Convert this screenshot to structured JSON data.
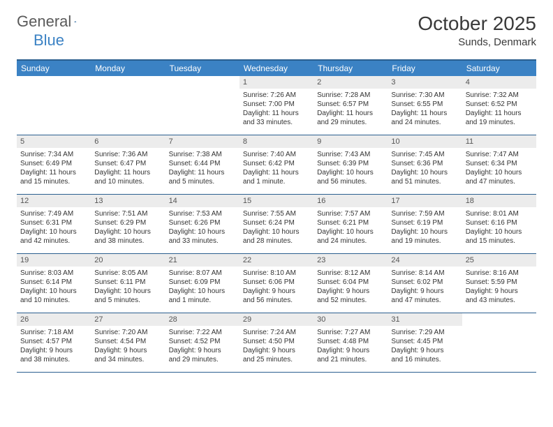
{
  "brand": {
    "word1": "General",
    "word2": "Blue"
  },
  "title": "October 2025",
  "location": "Sunds, Denmark",
  "weekdays": [
    "Sunday",
    "Monday",
    "Tuesday",
    "Wednesday",
    "Thursday",
    "Friday",
    "Saturday"
  ],
  "colors": {
    "header_bar": "#3b82c4",
    "rule": "#2b5f8f",
    "daynum_bg": "#ececec",
    "text": "#333333"
  },
  "weeks": [
    [
      {
        "n": "",
        "sr": "",
        "ss": "",
        "d1": "",
        "d2": ""
      },
      {
        "n": "",
        "sr": "",
        "ss": "",
        "d1": "",
        "d2": ""
      },
      {
        "n": "",
        "sr": "",
        "ss": "",
        "d1": "",
        "d2": ""
      },
      {
        "n": "1",
        "sr": "Sunrise: 7:26 AM",
        "ss": "Sunset: 7:00 PM",
        "d1": "Daylight: 11 hours",
        "d2": "and 33 minutes."
      },
      {
        "n": "2",
        "sr": "Sunrise: 7:28 AM",
        "ss": "Sunset: 6:57 PM",
        "d1": "Daylight: 11 hours",
        "d2": "and 29 minutes."
      },
      {
        "n": "3",
        "sr": "Sunrise: 7:30 AM",
        "ss": "Sunset: 6:55 PM",
        "d1": "Daylight: 11 hours",
        "d2": "and 24 minutes."
      },
      {
        "n": "4",
        "sr": "Sunrise: 7:32 AM",
        "ss": "Sunset: 6:52 PM",
        "d1": "Daylight: 11 hours",
        "d2": "and 19 minutes."
      }
    ],
    [
      {
        "n": "5",
        "sr": "Sunrise: 7:34 AM",
        "ss": "Sunset: 6:49 PM",
        "d1": "Daylight: 11 hours",
        "d2": "and 15 minutes."
      },
      {
        "n": "6",
        "sr": "Sunrise: 7:36 AM",
        "ss": "Sunset: 6:47 PM",
        "d1": "Daylight: 11 hours",
        "d2": "and 10 minutes."
      },
      {
        "n": "7",
        "sr": "Sunrise: 7:38 AM",
        "ss": "Sunset: 6:44 PM",
        "d1": "Daylight: 11 hours",
        "d2": "and 5 minutes."
      },
      {
        "n": "8",
        "sr": "Sunrise: 7:40 AM",
        "ss": "Sunset: 6:42 PM",
        "d1": "Daylight: 11 hours",
        "d2": "and 1 minute."
      },
      {
        "n": "9",
        "sr": "Sunrise: 7:43 AM",
        "ss": "Sunset: 6:39 PM",
        "d1": "Daylight: 10 hours",
        "d2": "and 56 minutes."
      },
      {
        "n": "10",
        "sr": "Sunrise: 7:45 AM",
        "ss": "Sunset: 6:36 PM",
        "d1": "Daylight: 10 hours",
        "d2": "and 51 minutes."
      },
      {
        "n": "11",
        "sr": "Sunrise: 7:47 AM",
        "ss": "Sunset: 6:34 PM",
        "d1": "Daylight: 10 hours",
        "d2": "and 47 minutes."
      }
    ],
    [
      {
        "n": "12",
        "sr": "Sunrise: 7:49 AM",
        "ss": "Sunset: 6:31 PM",
        "d1": "Daylight: 10 hours",
        "d2": "and 42 minutes."
      },
      {
        "n": "13",
        "sr": "Sunrise: 7:51 AM",
        "ss": "Sunset: 6:29 PM",
        "d1": "Daylight: 10 hours",
        "d2": "and 38 minutes."
      },
      {
        "n": "14",
        "sr": "Sunrise: 7:53 AM",
        "ss": "Sunset: 6:26 PM",
        "d1": "Daylight: 10 hours",
        "d2": "and 33 minutes."
      },
      {
        "n": "15",
        "sr": "Sunrise: 7:55 AM",
        "ss": "Sunset: 6:24 PM",
        "d1": "Daylight: 10 hours",
        "d2": "and 28 minutes."
      },
      {
        "n": "16",
        "sr": "Sunrise: 7:57 AM",
        "ss": "Sunset: 6:21 PM",
        "d1": "Daylight: 10 hours",
        "d2": "and 24 minutes."
      },
      {
        "n": "17",
        "sr": "Sunrise: 7:59 AM",
        "ss": "Sunset: 6:19 PM",
        "d1": "Daylight: 10 hours",
        "d2": "and 19 minutes."
      },
      {
        "n": "18",
        "sr": "Sunrise: 8:01 AM",
        "ss": "Sunset: 6:16 PM",
        "d1": "Daylight: 10 hours",
        "d2": "and 15 minutes."
      }
    ],
    [
      {
        "n": "19",
        "sr": "Sunrise: 8:03 AM",
        "ss": "Sunset: 6:14 PM",
        "d1": "Daylight: 10 hours",
        "d2": "and 10 minutes."
      },
      {
        "n": "20",
        "sr": "Sunrise: 8:05 AM",
        "ss": "Sunset: 6:11 PM",
        "d1": "Daylight: 10 hours",
        "d2": "and 5 minutes."
      },
      {
        "n": "21",
        "sr": "Sunrise: 8:07 AM",
        "ss": "Sunset: 6:09 PM",
        "d1": "Daylight: 10 hours",
        "d2": "and 1 minute."
      },
      {
        "n": "22",
        "sr": "Sunrise: 8:10 AM",
        "ss": "Sunset: 6:06 PM",
        "d1": "Daylight: 9 hours",
        "d2": "and 56 minutes."
      },
      {
        "n": "23",
        "sr": "Sunrise: 8:12 AM",
        "ss": "Sunset: 6:04 PM",
        "d1": "Daylight: 9 hours",
        "d2": "and 52 minutes."
      },
      {
        "n": "24",
        "sr": "Sunrise: 8:14 AM",
        "ss": "Sunset: 6:02 PM",
        "d1": "Daylight: 9 hours",
        "d2": "and 47 minutes."
      },
      {
        "n": "25",
        "sr": "Sunrise: 8:16 AM",
        "ss": "Sunset: 5:59 PM",
        "d1": "Daylight: 9 hours",
        "d2": "and 43 minutes."
      }
    ],
    [
      {
        "n": "26",
        "sr": "Sunrise: 7:18 AM",
        "ss": "Sunset: 4:57 PM",
        "d1": "Daylight: 9 hours",
        "d2": "and 38 minutes."
      },
      {
        "n": "27",
        "sr": "Sunrise: 7:20 AM",
        "ss": "Sunset: 4:54 PM",
        "d1": "Daylight: 9 hours",
        "d2": "and 34 minutes."
      },
      {
        "n": "28",
        "sr": "Sunrise: 7:22 AM",
        "ss": "Sunset: 4:52 PM",
        "d1": "Daylight: 9 hours",
        "d2": "and 29 minutes."
      },
      {
        "n": "29",
        "sr": "Sunrise: 7:24 AM",
        "ss": "Sunset: 4:50 PM",
        "d1": "Daylight: 9 hours",
        "d2": "and 25 minutes."
      },
      {
        "n": "30",
        "sr": "Sunrise: 7:27 AM",
        "ss": "Sunset: 4:48 PM",
        "d1": "Daylight: 9 hours",
        "d2": "and 21 minutes."
      },
      {
        "n": "31",
        "sr": "Sunrise: 7:29 AM",
        "ss": "Sunset: 4:45 PM",
        "d1": "Daylight: 9 hours",
        "d2": "and 16 minutes."
      },
      {
        "n": "",
        "sr": "",
        "ss": "",
        "d1": "",
        "d2": ""
      }
    ]
  ]
}
